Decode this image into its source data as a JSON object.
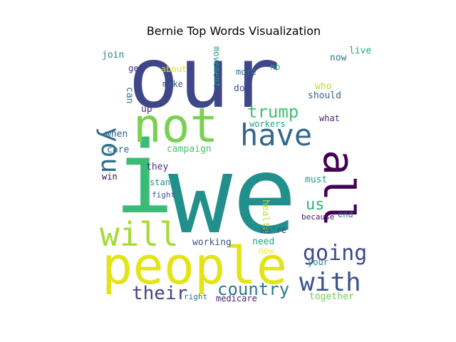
{
  "chart_data": {
    "type": "wordcloud",
    "title": "Bernie Top Words Visualization",
    "words": [
      {
        "text": "we",
        "color": "#21908d"
      },
      {
        "text": "i",
        "color": "#3bbb75"
      },
      {
        "text": "our",
        "color": "#3f4789"
      },
      {
        "text": "people",
        "color": "#e2e418"
      },
      {
        "text": "not",
        "color": "#7ad151"
      },
      {
        "text": "all",
        "color": "#440154"
      },
      {
        "text": "have",
        "color": "#31688e"
      },
      {
        "text": "will",
        "color": "#a5db36"
      },
      {
        "text": "you",
        "color": "#2e6f8e"
      },
      {
        "text": "going",
        "color": "#3e4a89"
      },
      {
        "text": "with",
        "color": "#3b528b"
      },
      {
        "text": "trump",
        "color": "#44bf70"
      },
      {
        "text": "their",
        "color": "#414487"
      },
      {
        "text": "country",
        "color": "#2a788e"
      },
      {
        "text": "us",
        "color": "#2fb47c"
      },
      {
        "text": "live",
        "color": "#22a884"
      },
      {
        "text": "join",
        "color": "#26828e"
      },
      {
        "text": "now",
        "color": "#2a788e"
      },
      {
        "text": "get",
        "color": "#46327e"
      },
      {
        "text": "about",
        "color": "#dde318"
      },
      {
        "text": "more",
        "color": "#2c728e"
      },
      {
        "text": "no",
        "color": "#2fb47c"
      },
      {
        "text": "make",
        "color": "#38588c"
      },
      {
        "text": "movement",
        "color": "#1f9e89"
      },
      {
        "text": "do",
        "color": "#3b528b"
      },
      {
        "text": "who",
        "color": "#b5de2b"
      },
      {
        "text": "can",
        "color": "#2a788e"
      },
      {
        "text": "should",
        "color": "#33638d"
      },
      {
        "text": "up",
        "color": "#472d7b"
      },
      {
        "text": "what",
        "color": "#482878"
      },
      {
        "text": "workers",
        "color": "#1fa088"
      },
      {
        "text": "when",
        "color": "#375a8c"
      },
      {
        "text": "care",
        "color": "#31688e"
      },
      {
        "text": "campaign",
        "color": "#4ac16d"
      },
      {
        "text": "they",
        "color": "#46337e"
      },
      {
        "text": "win",
        "color": "#440154"
      },
      {
        "text": "must",
        "color": "#1fa187"
      },
      {
        "text": "stand",
        "color": "#21918c"
      },
      {
        "text": "fight",
        "color": "#39568c"
      },
      {
        "text": "health",
        "color": "#bddf26"
      },
      {
        "text": "end",
        "color": "#2c728e"
      },
      {
        "text": "because",
        "color": "#481a6c"
      },
      {
        "text": "we're",
        "color": "#3e4989"
      },
      {
        "text": "need",
        "color": "#20a386"
      },
      {
        "text": "working",
        "color": "#3a548c"
      },
      {
        "text": "new",
        "color": "#fde725"
      },
      {
        "text": "your",
        "color": "#26818e"
      },
      {
        "text": "together",
        "color": "#6ece58"
      },
      {
        "text": "right",
        "color": "#2d708e"
      },
      {
        "text": "medicare",
        "color": "#482173"
      }
    ]
  }
}
